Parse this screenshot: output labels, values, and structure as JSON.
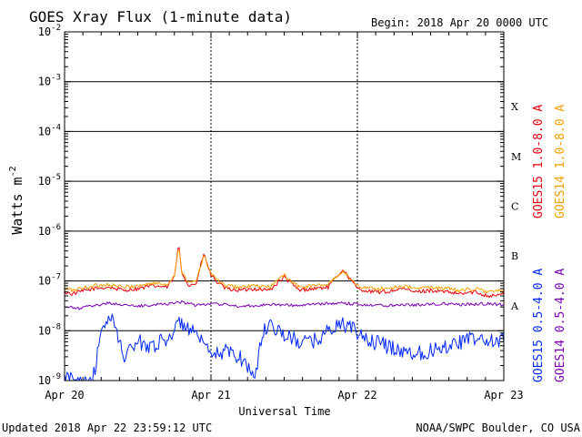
{
  "header": {
    "title": "GOES Xray Flux (1-minute data)",
    "begin_label": "Begin:  2018 Apr 20 0000 UTC"
  },
  "footer": {
    "updated": "Updated 2018 Apr 22 23:59:12 UTC",
    "credit": "NOAA/SWPC Boulder, CO USA"
  },
  "chart_data": {
    "type": "line",
    "title": "GOES Xray Flux (1-minute data)",
    "xlabel": "Universal Time",
    "ylabel": "Watts m-2",
    "y_scale": "log",
    "ylim": [
      1e-09,
      0.01
    ],
    "xlim_days": [
      0,
      3
    ],
    "x_ticks": [
      {
        "day": 0,
        "label": "Apr 20"
      },
      {
        "day": 1,
        "label": "Apr 21"
      },
      {
        "day": 2,
        "label": "Apr 22"
      },
      {
        "day": 3,
        "label": "Apr 23"
      }
    ],
    "y_ticks": [
      {
        "exp": -9,
        "label": "10-9"
      },
      {
        "exp": -8,
        "label": "10-8"
      },
      {
        "exp": -7,
        "label": "10-7"
      },
      {
        "exp": -6,
        "label": "10-6"
      },
      {
        "exp": -5,
        "label": "10-5"
      },
      {
        "exp": -4,
        "label": "10-4"
      },
      {
        "exp": -3,
        "label": "10-3"
      },
      {
        "exp": -2,
        "label": "10-2"
      }
    ],
    "flare_classes": [
      {
        "label": "X",
        "exp": -3.5
      },
      {
        "label": "M",
        "exp": -4.5
      },
      {
        "label": "C",
        "exp": -5.5
      },
      {
        "label": "B",
        "exp": -6.5
      },
      {
        "label": "A",
        "exp": -7.5
      }
    ],
    "grid": {
      "horizontal": "solid-at-decades",
      "vertical": "dashed-at-days"
    },
    "legend_placement": "right, rotated",
    "series": [
      {
        "name": "GOES15 1.0-8.0 A",
        "color": "#e8000b",
        "x_days": [
          0,
          0.05,
          0.1,
          0.2,
          0.3,
          0.4,
          0.5,
          0.6,
          0.7,
          0.75,
          0.78,
          0.8,
          0.85,
          0.9,
          0.95,
          1.0,
          1.05,
          1.1,
          1.2,
          1.3,
          1.4,
          1.5,
          1.6,
          1.7,
          1.8,
          1.9,
          2.0,
          2.1,
          2.2,
          2.3,
          2.4,
          2.5,
          2.6,
          2.7,
          2.8,
          2.9,
          3.0
        ],
        "flux": [
          6e-08,
          5.5e-08,
          6e-08,
          7e-08,
          7.5e-08,
          6.5e-08,
          7e-08,
          8e-08,
          7.5e-08,
          1.2e-07,
          5.5e-07,
          1.5e-07,
          8e-08,
          9e-08,
          3.5e-07,
          1.3e-07,
          9e-08,
          7e-08,
          6.5e-08,
          7e-08,
          6.5e-08,
          1.2e-07,
          6.5e-08,
          7e-08,
          7.5e-08,
          1.7e-07,
          7e-08,
          6e-08,
          6e-08,
          7e-08,
          6e-08,
          6.5e-08,
          6e-08,
          5.5e-08,
          6e-08,
          5e-08,
          5.5e-08
        ]
      },
      {
        "name": "GOES14 1.0-8.0 A",
        "color": "#f5a000",
        "x_days": [
          0,
          0.05,
          0.1,
          0.2,
          0.3,
          0.4,
          0.5,
          0.6,
          0.7,
          0.75,
          0.78,
          0.8,
          0.85,
          0.9,
          0.95,
          1.0,
          1.05,
          1.1,
          1.2,
          1.3,
          1.4,
          1.5,
          1.6,
          1.7,
          1.8,
          1.9,
          2.0,
          2.1,
          2.2,
          2.3,
          2.4,
          2.5,
          2.6,
          2.7,
          2.8,
          2.9,
          3.0
        ],
        "flux": [
          7e-08,
          6.5e-08,
          7e-08,
          8e-08,
          8.5e-08,
          7.5e-08,
          8e-08,
          9e-08,
          8.5e-08,
          1.3e-07,
          5e-07,
          1.6e-07,
          9e-08,
          1e-07,
          3.2e-07,
          1.4e-07,
          1e-07,
          8e-08,
          7.5e-08,
          8e-08,
          7.5e-08,
          1.3e-07,
          7.5e-08,
          8e-08,
          8.5e-08,
          1.6e-07,
          8e-08,
          7e-08,
          7e-08,
          8e-08,
          7e-08,
          7.5e-08,
          7e-08,
          6.5e-08,
          7e-08,
          6e-08,
          6.5e-08
        ]
      },
      {
        "name": "GOES15 0.5-4.0 A",
        "color": "#0028ff",
        "x_days": [
          0,
          0.1,
          0.15,
          0.2,
          0.25,
          0.3,
          0.35,
          0.4,
          0.5,
          0.6,
          0.7,
          0.8,
          0.9,
          1.0,
          1.1,
          1.2,
          1.3,
          1.35,
          1.4,
          1.5,
          1.6,
          1.7,
          1.8,
          1.9,
          2.0,
          2.1,
          2.2,
          2.3,
          2.4,
          2.5,
          2.6,
          2.7,
          2.8,
          2.9,
          3.0
        ],
        "flux": [
          1.1e-09,
          1e-09,
          1e-09,
          1.3e-09,
          8e-09,
          2e-08,
          1.2e-08,
          3e-09,
          6e-09,
          5e-09,
          7e-09,
          1.5e-08,
          8e-09,
          3e-09,
          4e-09,
          3e-09,
          1.2e-09,
          8e-09,
          1.5e-08,
          8e-09,
          6e-09,
          6e-09,
          1e-08,
          1.4e-08,
          9e-09,
          6e-09,
          5e-09,
          4e-09,
          3.5e-09,
          4e-09,
          5e-09,
          6e-09,
          7e-09,
          6e-09,
          6.5e-09
        ]
      },
      {
        "name": "GOES14 0.5-4.0 A",
        "color": "#7a00b4",
        "x_days": [
          0,
          0.1,
          0.2,
          0.3,
          0.4,
          0.5,
          0.6,
          0.7,
          0.8,
          0.9,
          1.0,
          1.1,
          1.2,
          1.3,
          1.4,
          1.5,
          1.6,
          1.7,
          1.8,
          1.9,
          2.0,
          2.1,
          2.2,
          2.3,
          2.4,
          2.5,
          2.6,
          2.7,
          2.8,
          2.9,
          3.0
        ],
        "flux": [
          3e-08,
          2.8e-08,
          3.2e-08,
          3.6e-08,
          3.3e-08,
          3.1e-08,
          3.3e-08,
          3.5e-08,
          3.8e-08,
          3.2e-08,
          3.6e-08,
          3.3e-08,
          3.1e-08,
          3.2e-08,
          3.4e-08,
          3.3e-08,
          3.2e-08,
          3.4e-08,
          3.5e-08,
          3.6e-08,
          3.4e-08,
          3.3e-08,
          3.2e-08,
          3.4e-08,
          3.3e-08,
          3.4e-08,
          3.5e-08,
          3.3e-08,
          3.4e-08,
          3.5e-08,
          3.3e-08
        ]
      }
    ]
  }
}
